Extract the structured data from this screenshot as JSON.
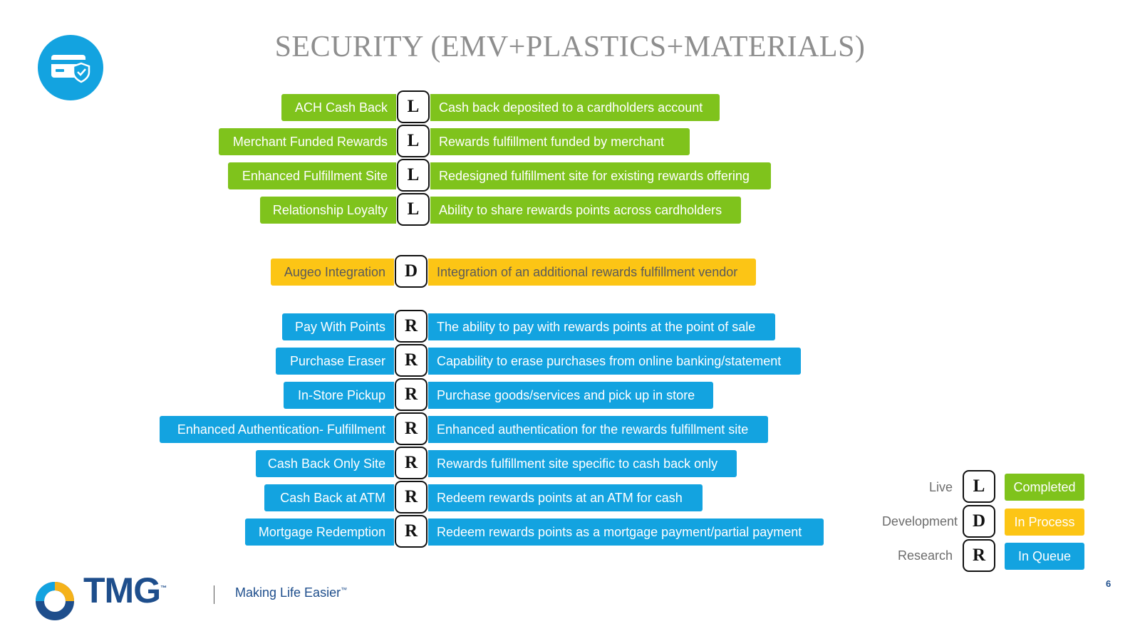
{
  "title": "SECURITY (EMV+PLASTICS+MATERIALS)",
  "colors": {
    "green": "#7fc31c",
    "yellow": "#fcc515",
    "blue": "#13a3e0",
    "navy": "#1e4e8c"
  },
  "header_icon": "credit-card-shield-icon",
  "rows": [
    {
      "label": "ACH Cash Back",
      "code": "L",
      "description": "Cash back deposited to a cardholders account"
    },
    {
      "label": "Merchant Funded Rewards",
      "code": "L",
      "description": "Rewards fulfillment funded by merchant"
    },
    {
      "label": "Enhanced Fulfillment Site",
      "code": "L",
      "description": "Redesigned fulfillment site for existing rewards offering"
    },
    {
      "label": "Relationship Loyalty",
      "code": "L",
      "description": "Ability to share rewards points across cardholders"
    },
    {
      "label": "Augeo Integration",
      "code": "D",
      "description": "Integration of an additional rewards fulfillment vendor"
    },
    {
      "label": "Pay With Points",
      "code": "R",
      "description": "The ability to pay with rewards points at the point of sale"
    },
    {
      "label": "Purchase Eraser",
      "code": "R",
      "description": "Capability to erase purchases from online banking/statement"
    },
    {
      "label": "In-Store Pickup",
      "code": "R",
      "description": "Purchase goods/services and pick up in store"
    },
    {
      "label": "Enhanced Authentication- Fulfillment",
      "code": "R",
      "description": "Enhanced authentication for the rewards fulfillment site"
    },
    {
      "label": "Cash Back Only Site",
      "code": "R",
      "description": "Rewards fulfillment site specific to cash back only"
    },
    {
      "label": "Cash Back at ATM",
      "code": "R",
      "description": "Redeem rewards points at an ATM for cash"
    },
    {
      "label": "Mortgage Redemption",
      "code": "R",
      "description": "Redeem rewards points as a mortgage payment/partial payment"
    }
  ],
  "legend": [
    {
      "name": "Live",
      "code": "L",
      "status": "Completed"
    },
    {
      "name": "Development",
      "code": "D",
      "status": "In Process"
    },
    {
      "name": "Research",
      "code": "R",
      "status": "In Queue"
    }
  ],
  "footer": {
    "logo": "TMG",
    "logo_mark": "™",
    "logo_icon": "tmg-swirl-logo-icon",
    "tagline": "Making Life Easier",
    "tagline_mark": "™",
    "page_number": "6"
  }
}
